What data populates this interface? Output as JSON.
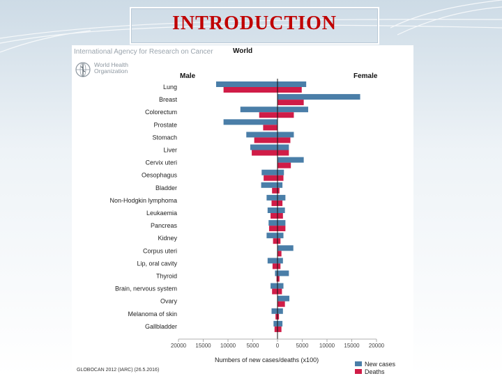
{
  "slide": {
    "title": "INTRODUCTION"
  },
  "figure": {
    "org_name": "International Agency for Research on Cancer",
    "who_line1": "World Health",
    "who_line2": "Organization",
    "region": "World",
    "male_label": "Male",
    "female_label": "Female",
    "source": "GLOBOCAN 2012 (IARC) (26.5.2016)"
  },
  "colors": {
    "new_cases": "#4a7ea8",
    "deaths": "#d01c47"
  },
  "chart_data": {
    "type": "bar",
    "orientation": "horizontal-butterfly",
    "title": "World",
    "xlabel": "Numbers of new cases/deaths (x100)",
    "xlim": [
      -20000,
      20000
    ],
    "x_ticks": [
      -20000,
      -15000,
      -10000,
      -5000,
      0,
      5000,
      10000,
      15000,
      20000
    ],
    "x_tick_labels": [
      "20000",
      "15000",
      "10000",
      "5000",
      "0",
      "5000",
      "10000",
      "15000",
      "20000"
    ],
    "categories": [
      "Lung",
      "Breast",
      "Colorectum",
      "Prostate",
      "Stomach",
      "Liver",
      "Cervix uteri",
      "Oesophagus",
      "Bladder",
      "Non-Hodgkin lymphoma",
      "Leukaemia",
      "Pancreas",
      "Kidney",
      "Corpus uteri",
      "Lip, oral cavity",
      "Thyroid",
      "Brain, nervous system",
      "Ovary",
      "Melanoma of skin",
      "Gallbladder"
    ],
    "series": [
      {
        "name": "New cases",
        "side": "Male",
        "values": [
          12400,
          0,
          7500,
          10900,
          6300,
          5500,
          0,
          3200,
          3300,
          2200,
          2000,
          1800,
          2200,
          0,
          2000,
          500,
          1400,
          0,
          1200,
          800
        ]
      },
      {
        "name": "Deaths",
        "side": "Male",
        "values": [
          10900,
          0,
          3700,
          2900,
          4700,
          5200,
          0,
          2800,
          1100,
          1200,
          1400,
          1700,
          900,
          0,
          1000,
          200,
          1100,
          0,
          400,
          600
        ]
      },
      {
        "name": "New cases",
        "side": "Female",
        "values": [
          5800,
          16700,
          6200,
          0,
          3300,
          2300,
          5300,
          1300,
          1000,
          1600,
          1500,
          1600,
          1200,
          3200,
          1100,
          2300,
          1200,
          2400,
          1100,
          1000
        ]
      },
      {
        "name": "Deaths",
        "side": "Female",
        "values": [
          4900,
          5300,
          3300,
          0,
          2600,
          2300,
          2700,
          1200,
          400,
          1000,
          1100,
          1600,
          600,
          800,
          600,
          400,
          900,
          1500,
          300,
          800
        ]
      }
    ],
    "legend": [
      "New cases",
      "Deaths"
    ],
    "legend_position": "bottom-right"
  }
}
